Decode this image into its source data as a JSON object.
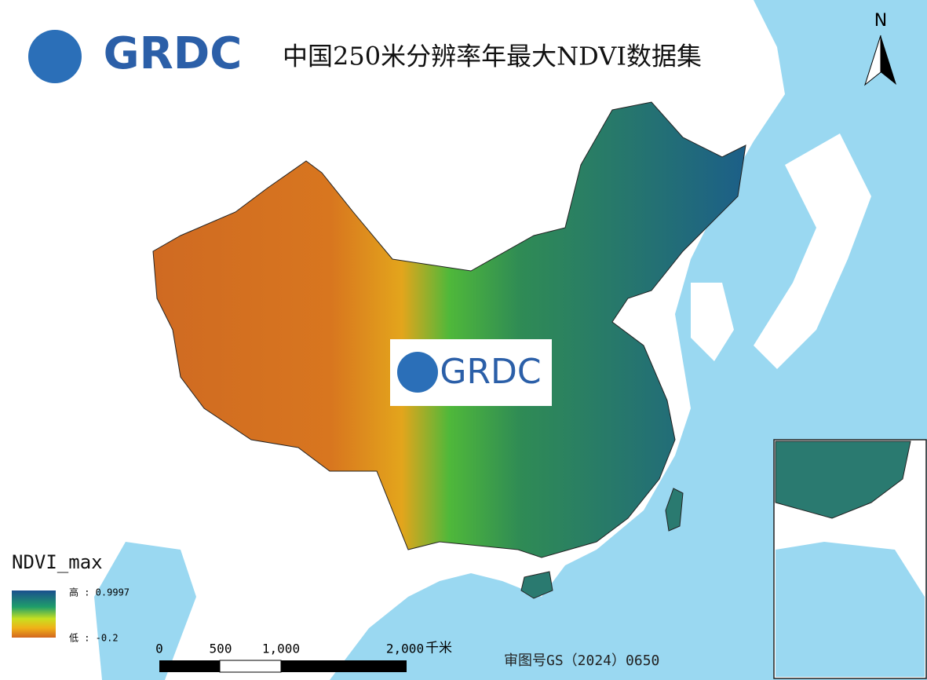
{
  "header": {
    "logo": "GRDC",
    "title": "中国250米分辨率年最大NDVI数据集"
  },
  "north_arrow": "N",
  "watermark": "GRDC",
  "legend": {
    "title": "NDVI_max",
    "high": "高 : 0.9997",
    "low": "低 : -0.2"
  },
  "scale_bar": {
    "ticks": [
      "0",
      "500",
      "1,000",
      "2,000"
    ],
    "unit": "千米"
  },
  "approval_number": "审图号GS（2024）0650"
}
